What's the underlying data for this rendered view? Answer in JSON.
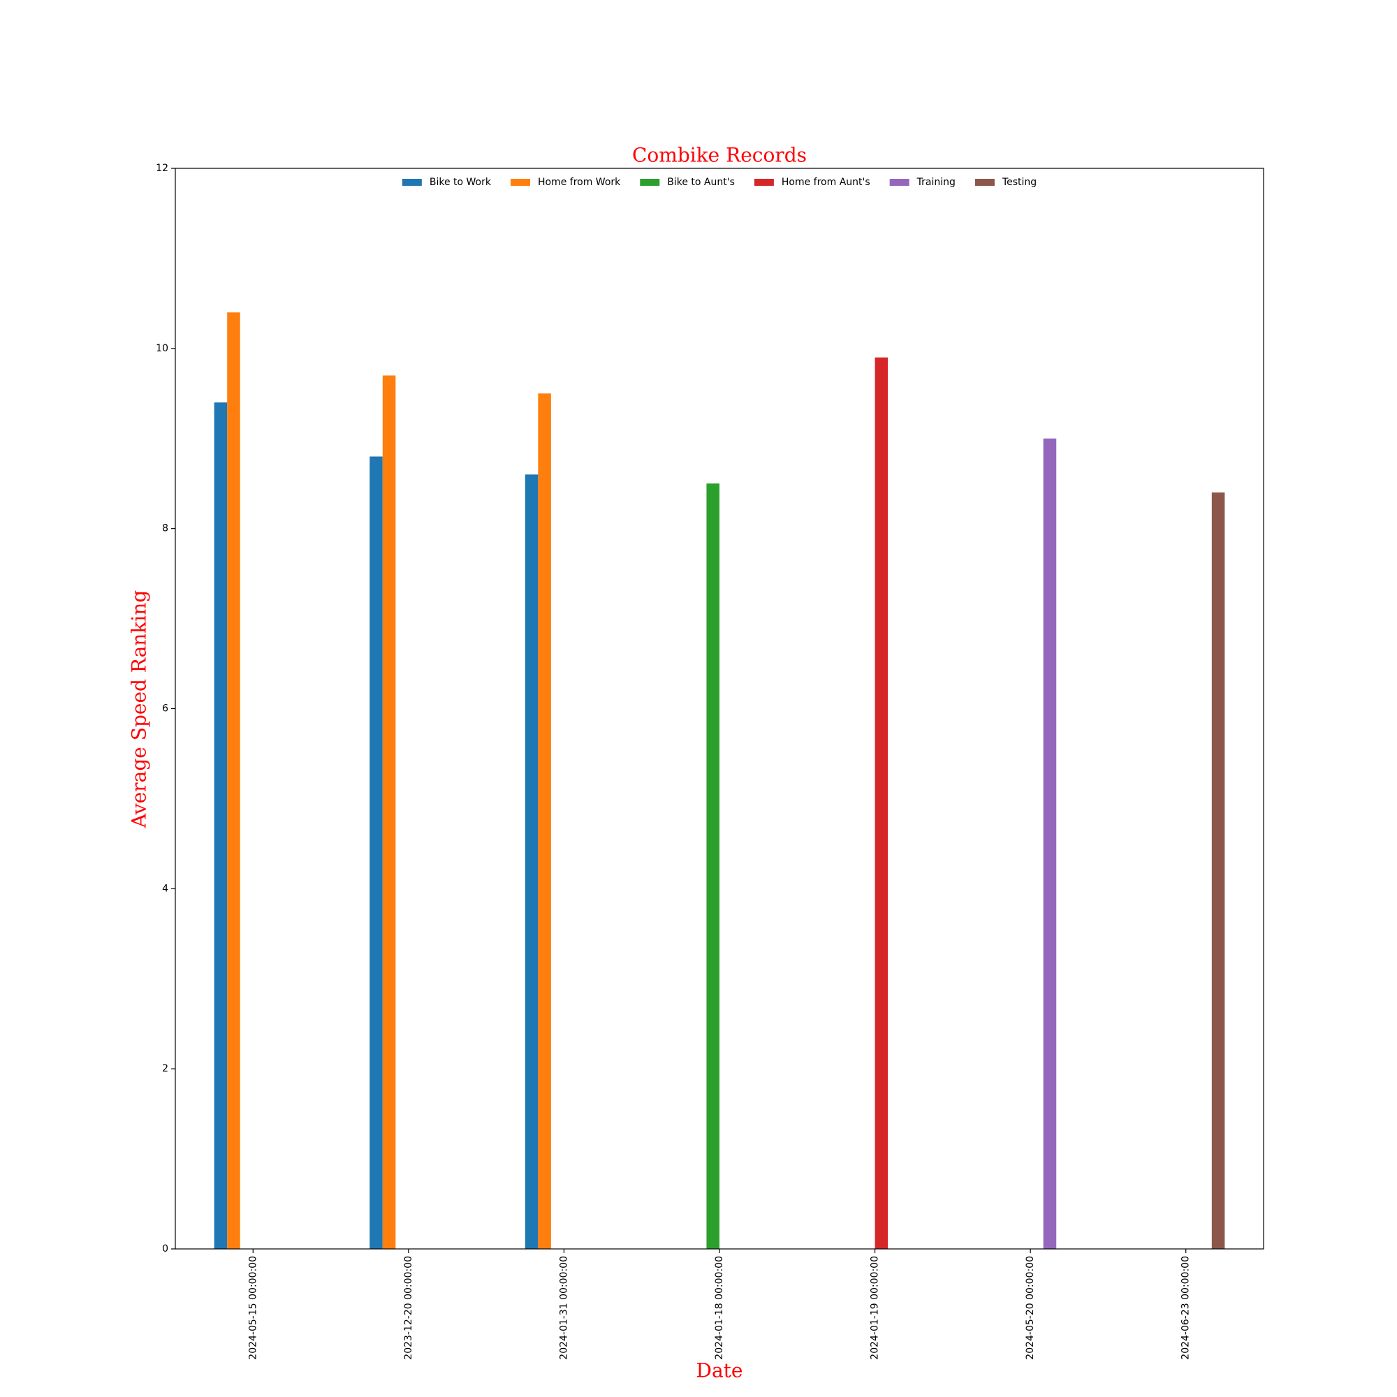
{
  "chart_data": {
    "type": "bar",
    "title": "Combike Records",
    "x_label": "Date",
    "y_label": "Average Speed Ranking",
    "categories": [
      "2024-05-15 00:00:00",
      "2023-12-20 00:00:00",
      "2024-01-31 00:00:00",
      "2024-01-18 00:00:00",
      "2024-01-19 00:00:00",
      "2024-05-20 00:00:00",
      "2024-06-23 00:00:00"
    ],
    "series": [
      {
        "name": "Bike to Work",
        "color": "#1f77b4",
        "values": [
          9.4,
          8.8,
          8.6,
          null,
          null,
          null,
          null
        ]
      },
      {
        "name": "Home from Work",
        "color": "#ff7f0e",
        "values": [
          10.4,
          9.7,
          9.5,
          null,
          null,
          null,
          null
        ]
      },
      {
        "name": "Bike to Aunt's",
        "color": "#2ca02c",
        "values": [
          null,
          null,
          null,
          8.5,
          null,
          null,
          null
        ]
      },
      {
        "name": "Home from Aunt's",
        "color": "#d62728",
        "values": [
          null,
          null,
          null,
          null,
          9.9,
          null,
          null
        ]
      },
      {
        "name": "Training",
        "color": "#9467bd",
        "values": [
          null,
          null,
          null,
          null,
          null,
          9.0,
          null
        ]
      },
      {
        "name": "Testing",
        "color": "#8c564b",
        "values": [
          null,
          null,
          null,
          null,
          null,
          null,
          8.4
        ]
      }
    ],
    "ylim": [
      0,
      12
    ],
    "yticks": [
      0,
      2,
      4,
      6,
      8,
      10,
      12
    ],
    "legend": "upper center"
  }
}
